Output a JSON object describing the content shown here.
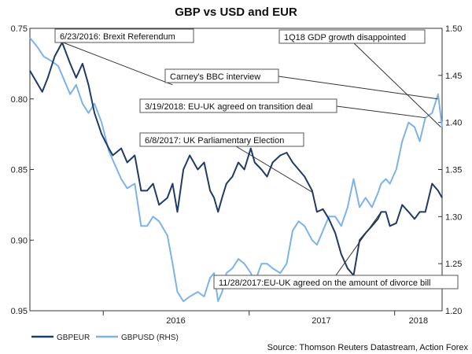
{
  "chart_data": {
    "type": "line",
    "title": "GBP vs USD and EUR",
    "source": "Source: Thomson Reuters Datastream, Action Forex",
    "left_axis": {
      "inverted": true,
      "ylim": [
        0.75,
        0.95
      ],
      "ticks": [
        "0.75",
        "0.80",
        "0.85",
        "0.90",
        "0.95"
      ]
    },
    "right_axis": {
      "ylim": [
        1.2,
        1.5
      ],
      "ticks": [
        "1.50",
        "1.45",
        "1.40",
        "1.35",
        "1.30",
        "1.25",
        "1.20"
      ]
    },
    "x_ticks": [
      "2016",
      "2017",
      "2018"
    ],
    "grid": false,
    "legend_placement": "bottom-left",
    "colors": {
      "gbpeur": "#1f3b66",
      "gbpusd": "#7db3e8"
    },
    "x_range": [
      "2015-07-01",
      "2018-04-30"
    ],
    "series": [
      {
        "name": "GBPEUR",
        "axis": "left",
        "points": [
          [
            "2015-07-01",
            0.78
          ],
          [
            "2015-08-01",
            0.795
          ],
          [
            "2015-08-15",
            0.785
          ],
          [
            "2015-09-01",
            0.77
          ],
          [
            "2015-09-20",
            0.76
          ],
          [
            "2015-10-10",
            0.775
          ],
          [
            "2015-10-25",
            0.785
          ],
          [
            "2015-11-10",
            0.775
          ],
          [
            "2015-11-25",
            0.79
          ],
          [
            "2015-12-10",
            0.81
          ],
          [
            "2015-12-28",
            0.825
          ],
          [
            "2016-01-15",
            0.835
          ],
          [
            "2016-01-25",
            0.84
          ],
          [
            "2016-02-15",
            0.835
          ],
          [
            "2016-03-01",
            0.845
          ],
          [
            "2016-03-20",
            0.84
          ],
          [
            "2016-04-05",
            0.865
          ],
          [
            "2016-04-20",
            0.865
          ],
          [
            "2016-05-05",
            0.86
          ],
          [
            "2016-05-20",
            0.875
          ],
          [
            "2016-06-10",
            0.87
          ],
          [
            "2016-06-23",
            0.86
          ],
          [
            "2016-07-05",
            0.88
          ],
          [
            "2016-07-20",
            0.85
          ],
          [
            "2016-08-05",
            0.84
          ],
          [
            "2016-08-25",
            0.85
          ],
          [
            "2016-09-10",
            0.845
          ],
          [
            "2016-09-25",
            0.865
          ],
          [
            "2016-10-05",
            0.87
          ],
          [
            "2016-10-15",
            0.88
          ],
          [
            "2016-10-25",
            0.87
          ],
          [
            "2016-11-05",
            0.86
          ],
          [
            "2016-11-20",
            0.855
          ],
          [
            "2016-12-05",
            0.845
          ],
          [
            "2016-12-20",
            0.85
          ],
          [
            "2017-01-05",
            0.835
          ],
          [
            "2017-01-15",
            0.845
          ],
          [
            "2017-02-01",
            0.85
          ],
          [
            "2017-02-15",
            0.855
          ],
          [
            "2017-03-01",
            0.845
          ],
          [
            "2017-03-20",
            0.84
          ],
          [
            "2017-04-05",
            0.838
          ],
          [
            "2017-04-20",
            0.845
          ],
          [
            "2017-05-05",
            0.85
          ],
          [
            "2017-05-20",
            0.855
          ],
          [
            "2017-06-08",
            0.865
          ],
          [
            "2017-06-20",
            0.88
          ],
          [
            "2017-07-05",
            0.878
          ],
          [
            "2017-07-20",
            0.885
          ],
          [
            "2017-08-05",
            0.895
          ],
          [
            "2017-08-20",
            0.91
          ],
          [
            "2017-09-05",
            0.92
          ],
          [
            "2017-09-20",
            0.925
          ],
          [
            "2017-10-05",
            0.9
          ],
          [
            "2017-10-20",
            0.895
          ],
          [
            "2017-11-05",
            0.89
          ],
          [
            "2017-11-20",
            0.885
          ],
          [
            "2017-11-28",
            0.88
          ],
          [
            "2017-12-10",
            0.88
          ],
          [
            "2017-12-20",
            0.89
          ],
          [
            "2018-01-05",
            0.888
          ],
          [
            "2018-01-20",
            0.875
          ],
          [
            "2018-02-05",
            0.88
          ],
          [
            "2018-02-20",
            0.885
          ],
          [
            "2018-03-05",
            0.88
          ],
          [
            "2018-03-19",
            0.88
          ],
          [
            "2018-04-05",
            0.86
          ],
          [
            "2018-04-20",
            0.865
          ],
          [
            "2018-04-30",
            0.87
          ]
        ]
      },
      {
        "name": "GBPUSD (RHS)",
        "axis": "right",
        "points": [
          [
            "2015-07-01",
            1.49
          ],
          [
            "2015-07-20",
            1.48
          ],
          [
            "2015-08-05",
            1.47
          ],
          [
            "2015-08-25",
            1.465
          ],
          [
            "2015-09-10",
            1.46
          ],
          [
            "2015-09-25",
            1.445
          ],
          [
            "2015-10-10",
            1.43
          ],
          [
            "2015-10-25",
            1.44
          ],
          [
            "2015-11-10",
            1.42
          ],
          [
            "2015-11-25",
            1.41
          ],
          [
            "2015-12-10",
            1.42
          ],
          [
            "2015-12-28",
            1.4
          ],
          [
            "2016-01-15",
            1.37
          ],
          [
            "2016-01-25",
            1.36
          ],
          [
            "2016-02-15",
            1.34
          ],
          [
            "2016-03-01",
            1.33
          ],
          [
            "2016-03-20",
            1.335
          ],
          [
            "2016-04-05",
            1.29
          ],
          [
            "2016-04-20",
            1.29
          ],
          [
            "2016-05-05",
            1.3
          ],
          [
            "2016-05-20",
            1.295
          ],
          [
            "2016-06-10",
            1.28
          ],
          [
            "2016-06-23",
            1.25
          ],
          [
            "2016-07-05",
            1.22
          ],
          [
            "2016-07-20",
            1.21
          ],
          [
            "2016-08-05",
            1.215
          ],
          [
            "2016-08-25",
            1.22
          ],
          [
            "2016-09-10",
            1.215
          ],
          [
            "2016-09-25",
            1.235
          ],
          [
            "2016-10-05",
            1.24
          ],
          [
            "2016-10-15",
            1.21
          ],
          [
            "2016-10-25",
            1.22
          ],
          [
            "2016-11-05",
            1.24
          ],
          [
            "2016-11-20",
            1.245
          ],
          [
            "2016-12-05",
            1.255
          ],
          [
            "2016-12-20",
            1.25
          ],
          [
            "2017-01-05",
            1.24
          ],
          [
            "2017-01-15",
            1.23
          ],
          [
            "2017-02-01",
            1.25
          ],
          [
            "2017-02-15",
            1.25
          ],
          [
            "2017-03-01",
            1.245
          ],
          [
            "2017-03-20",
            1.24
          ],
          [
            "2017-04-05",
            1.25
          ],
          [
            "2017-04-20",
            1.285
          ],
          [
            "2017-05-05",
            1.295
          ],
          [
            "2017-05-20",
            1.29
          ],
          [
            "2017-06-08",
            1.275
          ],
          [
            "2017-06-20",
            1.27
          ],
          [
            "2017-07-05",
            1.285
          ],
          [
            "2017-07-20",
            1.3
          ],
          [
            "2017-08-05",
            1.3
          ],
          [
            "2017-08-20",
            1.29
          ],
          [
            "2017-09-05",
            1.31
          ],
          [
            "2017-09-20",
            1.34
          ],
          [
            "2017-10-05",
            1.31
          ],
          [
            "2017-10-20",
            1.32
          ],
          [
            "2017-11-05",
            1.31
          ],
          [
            "2017-11-20",
            1.325
          ],
          [
            "2017-11-28",
            1.335
          ],
          [
            "2017-12-10",
            1.34
          ],
          [
            "2017-12-20",
            1.335
          ],
          [
            "2018-01-05",
            1.35
          ],
          [
            "2018-01-20",
            1.38
          ],
          [
            "2018-02-05",
            1.4
          ],
          [
            "2018-02-20",
            1.395
          ],
          [
            "2018-03-05",
            1.38
          ],
          [
            "2018-03-19",
            1.405
          ],
          [
            "2018-04-05",
            1.41
          ],
          [
            "2018-04-20",
            1.43
          ],
          [
            "2018-04-30",
            1.395
          ]
        ]
      }
    ],
    "annotations": [
      {
        "text": "6/23/2016: Brexit Referendum",
        "date": "2016-06-23"
      },
      {
        "text": "1Q18 GDP growth disappointed",
        "date": "2018-04-27"
      },
      {
        "text": "Carney's BBC interview",
        "date": "2018-04-19"
      },
      {
        "text": "3/19/2018: EU-UK agreed on transition deal",
        "date": "2018-03-19"
      },
      {
        "text": "6/8/2017: UK Parliamentary Election",
        "date": "2017-06-08"
      },
      {
        "text": "11/28/2017:EU-UK agreed on the amount of divorce bill",
        "date": "2017-11-28"
      }
    ]
  }
}
